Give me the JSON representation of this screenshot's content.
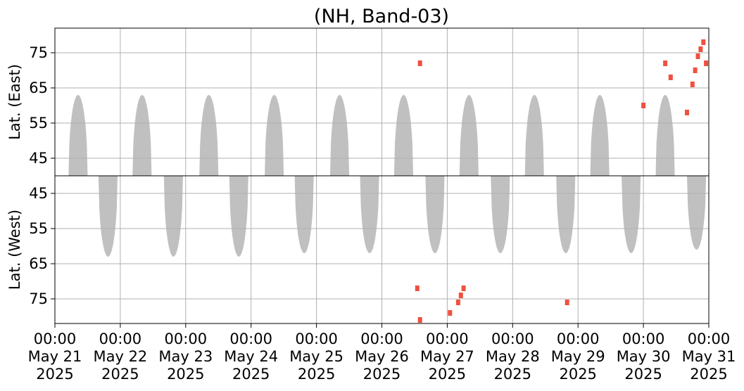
{
  "chart_data": [
    {
      "type": "heatmap",
      "title": "(NH, Band-03)",
      "panel": "east",
      "ylabel": "Lat. (East)",
      "ylim": [
        40,
        82
      ],
      "y_inverted": false,
      "yticks": [
        45,
        55,
        65,
        75
      ],
      "xlim": [
        "2025-05-21",
        "2025-05-31"
      ],
      "grid": true,
      "colors": {
        "background_data": "#c0c0c0",
        "highlight": "#f05040",
        "grid": "#b0b0b0"
      },
      "gray_regions": [
        {
          "center": "2025-05-21 08:30",
          "half_width_hours": 3.5,
          "lat_min": 40,
          "lat_max": 63
        },
        {
          "center": "2025-05-22 08:00",
          "half_width_hours": 3.5,
          "lat_min": 40,
          "lat_max": 63
        },
        {
          "center": "2025-05-23 08:30",
          "half_width_hours": 3.5,
          "lat_min": 40,
          "lat_max": 63
        },
        {
          "center": "2025-05-24 08:30",
          "half_width_hours": 3.5,
          "lat_min": 40,
          "lat_max": 63
        },
        {
          "center": "2025-05-25 08:30",
          "half_width_hours": 3.5,
          "lat_min": 40,
          "lat_max": 63
        },
        {
          "center": "2025-05-26 08:00",
          "half_width_hours": 3.5,
          "lat_min": 40,
          "lat_max": 63
        },
        {
          "center": "2025-05-27 08:00",
          "half_width_hours": 3.5,
          "lat_min": 40,
          "lat_max": 63
        },
        {
          "center": "2025-05-28 08:00",
          "half_width_hours": 3.5,
          "lat_min": 40,
          "lat_max": 63
        },
        {
          "center": "2025-05-29 08:00",
          "half_width_hours": 3.5,
          "lat_min": 40,
          "lat_max": 63
        },
        {
          "center": "2025-05-30 08:00",
          "half_width_hours": 3.5,
          "lat_min": 40,
          "lat_max": 63
        }
      ],
      "highlight_points": [
        {
          "x": "2025-05-26 14:00",
          "lat": 72
        },
        {
          "x": "2025-05-30 00:00",
          "lat": 60
        },
        {
          "x": "2025-05-30 10:00",
          "lat": 68
        },
        {
          "x": "2025-05-30 08:00",
          "lat": 72
        },
        {
          "x": "2025-05-30 16:00",
          "lat": 58
        },
        {
          "x": "2025-05-30 18:00",
          "lat": 66
        },
        {
          "x": "2025-05-30 19:00",
          "lat": 70
        },
        {
          "x": "2025-05-30 20:00",
          "lat": 74
        },
        {
          "x": "2025-05-30 21:00",
          "lat": 76
        },
        {
          "x": "2025-05-30 22:00",
          "lat": 78
        },
        {
          "x": "2025-05-30 23:00",
          "lat": 72
        }
      ]
    },
    {
      "type": "heatmap",
      "panel": "west",
      "ylabel": "Lat. (West)",
      "ylim": [
        40,
        82
      ],
      "y_inverted": true,
      "yticks": [
        75,
        65,
        55,
        45
      ],
      "xlim": [
        "2025-05-21",
        "2025-05-31"
      ],
      "xticks": [
        {
          "time": "00:00",
          "date": "May 21",
          "year": "2025"
        },
        {
          "time": "00:00",
          "date": "May 22",
          "year": "2025"
        },
        {
          "time": "00:00",
          "date": "May 23",
          "year": "2025"
        },
        {
          "time": "00:00",
          "date": "May 24",
          "year": "2025"
        },
        {
          "time": "00:00",
          "date": "May 25",
          "year": "2025"
        },
        {
          "time": "00:00",
          "date": "May 26",
          "year": "2025"
        },
        {
          "time": "00:00",
          "date": "May 27",
          "year": "2025"
        },
        {
          "time": "00:00",
          "date": "May 28",
          "year": "2025"
        },
        {
          "time": "00:00",
          "date": "May 29",
          "year": "2025"
        },
        {
          "time": "00:00",
          "date": "May 30",
          "year": "2025"
        },
        {
          "time": "00:00",
          "date": "May 31",
          "year": "2025"
        }
      ],
      "grid": true,
      "gray_regions": [
        {
          "center": "2025-05-21 19:30",
          "half_width_hours": 3.5,
          "lat_min": 40,
          "lat_max": 63
        },
        {
          "center": "2025-05-22 19:30",
          "half_width_hours": 3.5,
          "lat_min": 40,
          "lat_max": 63
        },
        {
          "center": "2025-05-23 19:30",
          "half_width_hours": 3.5,
          "lat_min": 40,
          "lat_max": 63
        },
        {
          "center": "2025-05-24 19:30",
          "half_width_hours": 3.5,
          "lat_min": 40,
          "lat_max": 62
        },
        {
          "center": "2025-05-25 19:30",
          "half_width_hours": 3.5,
          "lat_min": 40,
          "lat_max": 62
        },
        {
          "center": "2025-05-26 19:30",
          "half_width_hours": 3.5,
          "lat_min": 40,
          "lat_max": 62
        },
        {
          "center": "2025-05-27 19:30",
          "half_width_hours": 3.5,
          "lat_min": 40,
          "lat_max": 62
        },
        {
          "center": "2025-05-28 19:30",
          "half_width_hours": 3.5,
          "lat_min": 40,
          "lat_max": 62
        },
        {
          "center": "2025-05-29 19:30",
          "half_width_hours": 3.5,
          "lat_min": 40,
          "lat_max": 62
        },
        {
          "center": "2025-05-30 19:30",
          "half_width_hours": 3.5,
          "lat_min": 40,
          "lat_max": 61
        }
      ],
      "highlight_points": [
        {
          "x": "2025-05-26 14:00",
          "lat": 81
        },
        {
          "x": "2025-05-26 13:00",
          "lat": 72
        },
        {
          "x": "2025-05-27 01:00",
          "lat": 79
        },
        {
          "x": "2025-05-27 04:00",
          "lat": 76
        },
        {
          "x": "2025-05-27 05:00",
          "lat": 74
        },
        {
          "x": "2025-05-27 06:00",
          "lat": 72
        },
        {
          "x": "2025-05-28 20:00",
          "lat": 76
        }
      ]
    }
  ]
}
